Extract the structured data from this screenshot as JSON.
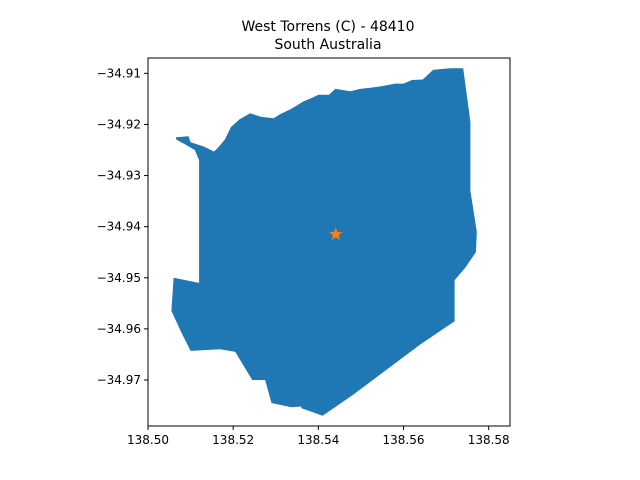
{
  "figure": {
    "title_line1": "West Torrens (C) - 48410",
    "title_line2": "South Australia"
  },
  "colors": {
    "region_fill": "#1f77b4",
    "marker": "#ff7f0e",
    "axes": "#000000",
    "background": "#ffffff"
  },
  "chart_data": {
    "type": "map",
    "title": "West Torrens (C) - 48410",
    "subtitle": "South Australia",
    "xlim": [
      138.5,
      138.585
    ],
    "ylim": [
      -34.979,
      -34.907
    ],
    "xticks": [
      138.5,
      138.52,
      138.54,
      138.56,
      138.58
    ],
    "xtick_labels": [
      "138.50",
      "138.52",
      "138.54",
      "138.56",
      "138.58"
    ],
    "yticks": [
      -34.91,
      -34.92,
      -34.93,
      -34.94,
      -34.95,
      -34.96,
      -34.97
    ],
    "ytick_labels": [
      "−34.91",
      "−34.92",
      "−34.93",
      "−34.94",
      "−34.95",
      "−34.96",
      "−34.97"
    ],
    "region": {
      "polygon": [
        [
          138.5065,
          -34.9225
        ],
        [
          138.5095,
          -34.9223
        ],
        [
          138.51,
          -34.9235
        ],
        [
          138.513,
          -34.9243
        ],
        [
          138.5155,
          -34.9253
        ],
        [
          138.5165,
          -34.9245
        ],
        [
          138.518,
          -34.923
        ],
        [
          138.5195,
          -34.9205
        ],
        [
          138.5215,
          -34.919
        ],
        [
          138.524,
          -34.9178
        ],
        [
          138.5265,
          -34.9185
        ],
        [
          138.5295,
          -34.9188
        ],
        [
          138.531,
          -34.918
        ],
        [
          138.5335,
          -34.917
        ],
        [
          138.5345,
          -34.9165
        ],
        [
          138.5365,
          -34.9155
        ],
        [
          138.5385,
          -34.9148
        ],
        [
          138.54,
          -34.9142
        ],
        [
          138.5425,
          -34.9142
        ],
        [
          138.544,
          -34.913
        ],
        [
          138.546,
          -34.9133
        ],
        [
          138.5475,
          -34.9135
        ],
        [
          138.55,
          -34.913
        ],
        [
          138.5525,
          -34.9128
        ],
        [
          138.555,
          -34.9125
        ],
        [
          138.558,
          -34.912
        ],
        [
          138.56,
          -34.912
        ],
        [
          138.562,
          -34.9113
        ],
        [
          138.5645,
          -34.9112
        ],
        [
          138.567,
          -34.9093
        ],
        [
          138.571,
          -34.909
        ],
        [
          138.574,
          -34.909
        ],
        [
          138.5757,
          -34.9195
        ],
        [
          138.5757,
          -34.933
        ],
        [
          138.5772,
          -34.941
        ],
        [
          138.577,
          -34.945
        ],
        [
          138.5745,
          -34.948
        ],
        [
          138.572,
          -34.9505
        ],
        [
          138.572,
          -34.9585
        ],
        [
          138.564,
          -34.963
        ],
        [
          138.556,
          -34.968
        ],
        [
          138.548,
          -34.973
        ],
        [
          138.541,
          -34.977
        ],
        [
          138.536,
          -34.9755
        ],
        [
          138.536,
          -34.9752
        ],
        [
          138.5335,
          -34.9753
        ],
        [
          138.529,
          -34.9745
        ],
        [
          138.5275,
          -34.97
        ],
        [
          138.5245,
          -34.97
        ],
        [
          138.523,
          -34.968
        ],
        [
          138.5205,
          -34.9645
        ],
        [
          138.517,
          -34.964
        ],
        [
          138.51,
          -34.9643
        ],
        [
          138.508,
          -34.961
        ],
        [
          138.5055,
          -34.9565
        ],
        [
          138.506,
          -34.95
        ],
        [
          138.512,
          -34.951
        ],
        [
          138.512,
          -34.9465
        ],
        [
          138.512,
          -34.94
        ],
        [
          138.512,
          -34.933
        ],
        [
          138.512,
          -34.927
        ],
        [
          138.511,
          -34.925
        ],
        [
          138.5085,
          -34.9238
        ],
        [
          138.5067,
          -34.923
        ]
      ]
    },
    "marker": {
      "x": 138.5441,
      "y": -34.9415,
      "shape": "star"
    },
    "grid": false
  }
}
